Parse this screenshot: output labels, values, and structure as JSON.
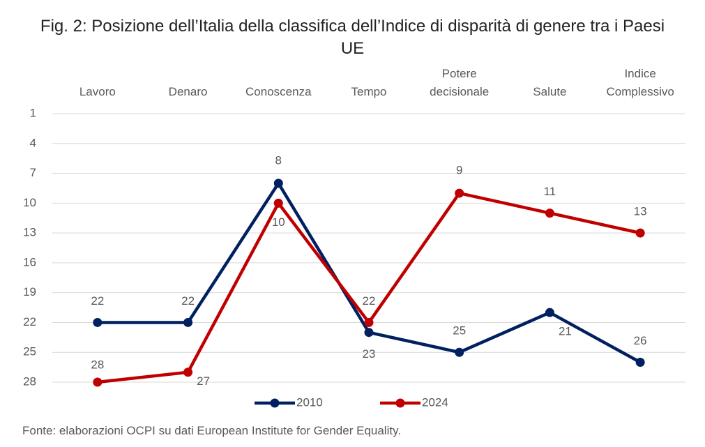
{
  "chart_data": {
    "type": "line",
    "title": "Fig. 2: Posizione dell’Italia della classifica dell’Indice di disparità di genere tra i Paesi UE",
    "categories": [
      "Lavoro",
      "Denaro",
      "Conoscenza",
      "Tempo",
      "Potere decisionale",
      "Salute",
      "Indice Complessivo"
    ],
    "series": [
      {
        "name": "2010",
        "color": "#002060",
        "values": [
          22,
          22,
          8,
          23,
          25,
          21,
          26
        ]
      },
      {
        "name": "2024",
        "color": "#c00000",
        "values": [
          28,
          27,
          10,
          22,
          9,
          11,
          13
        ]
      }
    ],
    "ylim": [
      1,
      28
    ],
    "y_inverted": true,
    "yticks": [
      1,
      4,
      7,
      10,
      13,
      16,
      19,
      22,
      25,
      28
    ],
    "grid": true,
    "legend": "bottom",
    "source": "Fonte: elaborazioni OCPI su dati European Institute for Gender Equality."
  }
}
